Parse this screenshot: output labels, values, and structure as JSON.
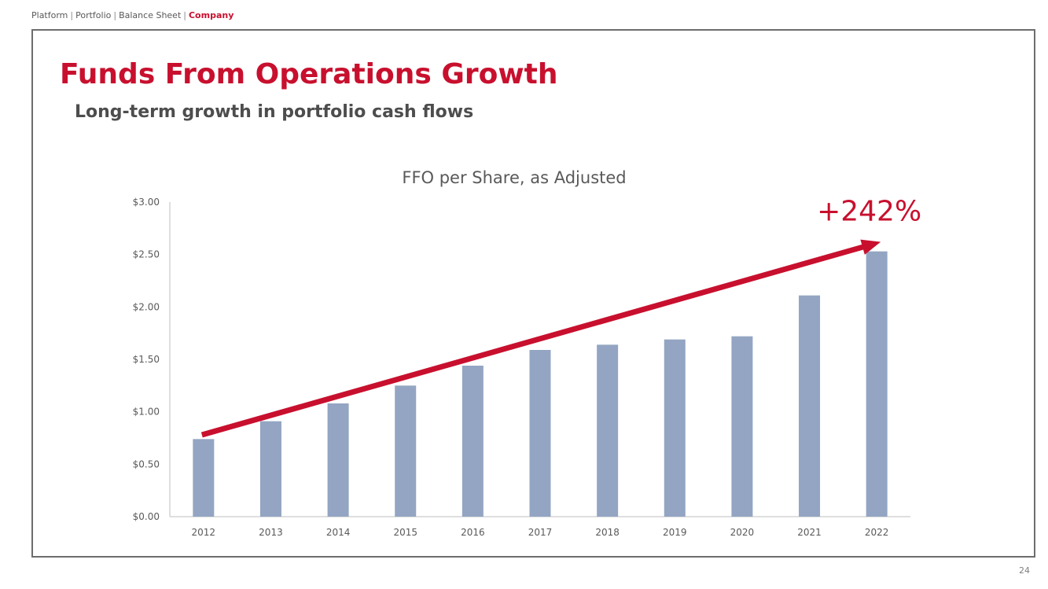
{
  "breadcrumb": {
    "items": [
      {
        "label": "Platform",
        "active": false
      },
      {
        "label": "Portfolio",
        "active": false
      },
      {
        "label": "Balance Sheet",
        "active": false
      },
      {
        "label": "Company",
        "active": true
      }
    ],
    "separator": "|"
  },
  "slide": {
    "title": "Funds From Operations Growth",
    "subtitle": "Long-term growth in portfolio cash flows",
    "page_number": "24"
  },
  "colors": {
    "accent": "#c8102e",
    "bar": "#93a5c2",
    "axis": "#bfbfbf",
    "tick_text": "#595959"
  },
  "chart_data": {
    "type": "bar",
    "title": "FFO per Share, as Adjusted",
    "categories": [
      "2012",
      "2013",
      "2014",
      "2015",
      "2016",
      "2017",
      "2018",
      "2019",
      "2020",
      "2021",
      "2022"
    ],
    "series": [
      {
        "name": "FFO per Share, as Adjusted",
        "values": [
          0.74,
          0.91,
          1.08,
          1.25,
          1.44,
          1.59,
          1.64,
          1.69,
          1.72,
          2.11,
          2.53
        ]
      }
    ],
    "ylim": [
      0,
      3
    ],
    "yticks": [
      0,
      0.5,
      1,
      1.5,
      2,
      2.5,
      3
    ],
    "ytick_labels": [
      "$0.00",
      "$0.50",
      "$1.00",
      "$1.50",
      "$2.00",
      "$2.50",
      "$3.00"
    ],
    "xlabel": "",
    "ylabel": "",
    "grid": false,
    "annotation": {
      "text": "+242%",
      "arrow_from": {
        "category": "2012",
        "value": 0.78
      },
      "arrow_to": {
        "category": "2022",
        "value": 2.62
      }
    }
  }
}
